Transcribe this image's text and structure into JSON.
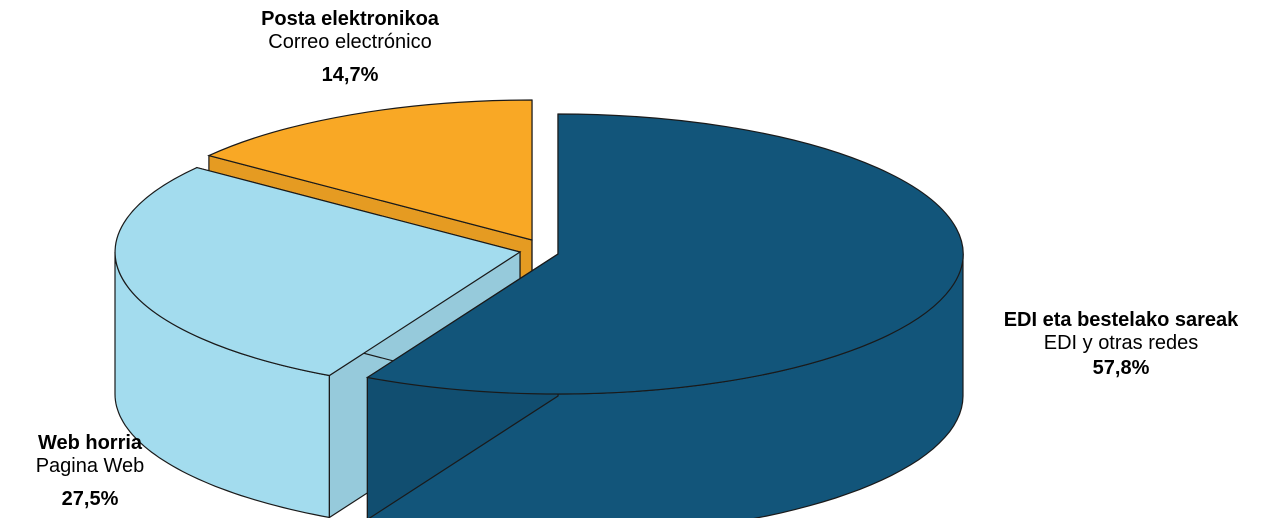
{
  "chart_data": {
    "type": "pie",
    "variant": "3d-exploded",
    "slices": [
      {
        "name": "EDI eta bestelako sareak",
        "subname": "EDI y otras redes",
        "value": 57.8,
        "label": "57,8%",
        "color": "#12557A"
      },
      {
        "name": "Web horria",
        "subname": "Pagina Web",
        "value": 27.5,
        "label": "27,5%",
        "color": "#A3DCEE"
      },
      {
        "name": "Posta elektronikoa",
        "subname": "Correo electrónico",
        "value": 14.7,
        "label": "14,7%",
        "color": "#F9A825"
      }
    ]
  }
}
